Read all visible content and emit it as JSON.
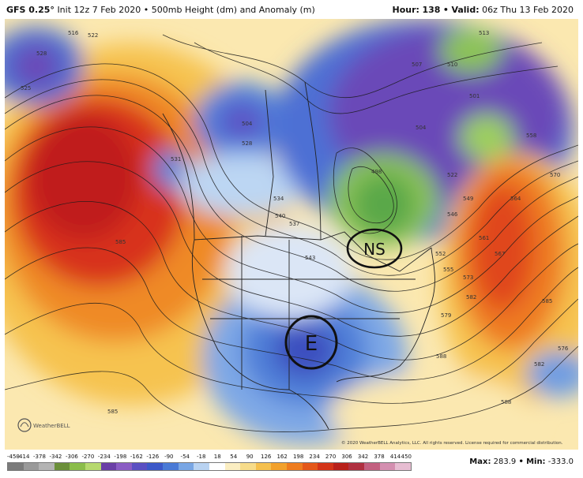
{
  "header": {
    "model": "GFS 0.25°",
    "init": "Init 12z 7 Feb 2020",
    "separator": "•",
    "product": "500mb Height (dm) and Anomaly (m)",
    "hour_label": "Hour:",
    "hour_value": "138",
    "valid_label": "Valid:",
    "valid_value": "06z Thu 13 Feb 2020"
  },
  "annotations": {
    "ns_label": "NS",
    "e_label": "E"
  },
  "contours": [
    "516",
    "522",
    "528",
    "534",
    "540",
    "546",
    "552",
    "558",
    "564",
    "570",
    "576",
    "582",
    "585",
    "588",
    "501",
    "504",
    "507",
    "510",
    "513",
    "498",
    "525",
    "531",
    "537",
    "543",
    "549",
    "555",
    "561",
    "567",
    "573",
    "579"
  ],
  "footer": {
    "copyright": "© 2020 WeatherBELL Analytics, LLC. All rights reserved. License required for commercial distribution.",
    "logo_text": "WeatherBELL",
    "max_label": "Max:",
    "max_value": "283.9",
    "min_label": "Min:",
    "min_value": "-333.0",
    "separator": "•"
  },
  "colorbar": {
    "labels": [
      "-450",
      "-414",
      "-378",
      "-342",
      "-306",
      "-270",
      "-234",
      "-198",
      "-162",
      "-126",
      "-90",
      "-54",
      "-18",
      "18",
      "54",
      "90",
      "126",
      "162",
      "198",
      "234",
      "270",
      "306",
      "342",
      "378",
      "414",
      "450"
    ],
    "colors": [
      "#7b7b7b",
      "#9a9a9a",
      "#b4b4b4",
      "#6b8f3a",
      "#8bbd4a",
      "#b6d96e",
      "#6a3fa6",
      "#8a5cc4",
      "#5a4fc2",
      "#3c58c8",
      "#4a7ad6",
      "#79a6e4",
      "#b9d3f2",
      "#ffffff",
      "#fbeec2",
      "#f7dc8a",
      "#f5c04e",
      "#f2a12c",
      "#ee7c1f",
      "#e45719",
      "#d33418",
      "#b8201a",
      "#b03040",
      "#c36080",
      "#d48fb0",
      "#e7bdd2"
    ]
  },
  "palette": {
    "blue_deep": "#3d3fae",
    "purple": "#6b47b8",
    "green": "#7bc14f",
    "red": "#d52a1c",
    "orange": "#f28a25",
    "yellow": "#f8d66c",
    "light_blue": "#bcd6f3",
    "blue": "#4f7fd8"
  }
}
